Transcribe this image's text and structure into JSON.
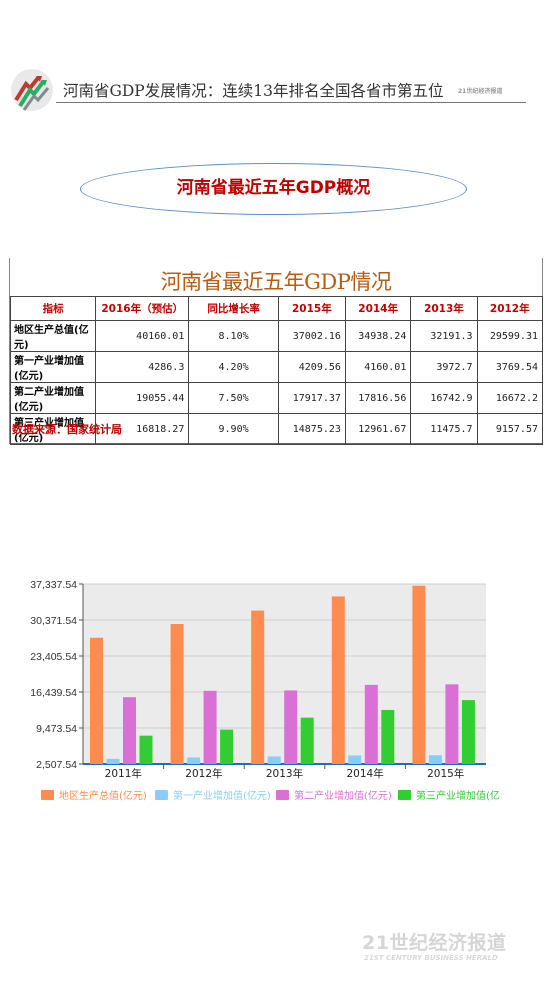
{
  "header": {
    "title": "河南省GDP发展情况：连续13年排名全国各省市第五位",
    "tag": "21世纪经济报道"
  },
  "banner": {
    "title": "河南省最近五年GDP概况"
  },
  "table": {
    "title": "河南省最近五年GDP情况",
    "headers": [
      "指标",
      "2016年（预估）",
      "同比增长率",
      "2015年",
      "2014年",
      "2013年",
      "2012年"
    ],
    "rows": [
      [
        "地区生产总值(亿元)",
        "40160.01",
        "8.10%",
        "37002.16",
        "34938.24",
        "32191.3",
        "29599.31"
      ],
      [
        "第一产业增加值(亿元)",
        "4286.3",
        "4.20%",
        "4209.56",
        "4160.01",
        "3972.7",
        "3769.54"
      ],
      [
        "第二产业增加值(亿元)",
        "19055.44",
        "7.50%",
        "17917.37",
        "17816.56",
        "16742.9",
        "16672.2"
      ],
      [
        "第三产业增加值(亿元)",
        "16818.27",
        "9.90%",
        "14875.23",
        "12961.67",
        "11475.7",
        "9157.57"
      ]
    ],
    "source": "数据来源：国家统计局"
  },
  "chart_data": {
    "type": "bar",
    "categories": [
      "2011年",
      "2012年",
      "2013年",
      "2014年",
      "2015年"
    ],
    "series": [
      {
        "name": "地区生产总值(亿元)",
        "color": "#ff8c4f",
        "values": [
          26931,
          29599.31,
          32191.3,
          34938.24,
          37002.16
        ]
      },
      {
        "name": "第一产业增加值(亿元)",
        "color": "#87cefa",
        "values": [
          3512,
          3769.54,
          3972.7,
          4160.01,
          4209.56
        ]
      },
      {
        "name": "第二产业增加值(亿元)",
        "color": "#da70d6",
        "values": [
          15427,
          16672.2,
          16742.9,
          17816.56,
          17917.37
        ]
      },
      {
        "name": "第三产业增加值(亿元)",
        "color": "#32cd32",
        "values": [
          7991,
          9157.57,
          11475.7,
          12961.67,
          14875.23
        ]
      }
    ],
    "yticks": [
      "2,507.54",
      "9,473.54",
      "16,439.54",
      "23,405.54",
      "30,371.54",
      "37,337.54"
    ],
    "ylim": [
      2507.54,
      37337.54
    ],
    "legend": "bottom",
    "grid": true
  },
  "watermark": {
    "main": "21世纪经济报道",
    "sub": "21ST CENTURY BUSINESS HERALD"
  }
}
